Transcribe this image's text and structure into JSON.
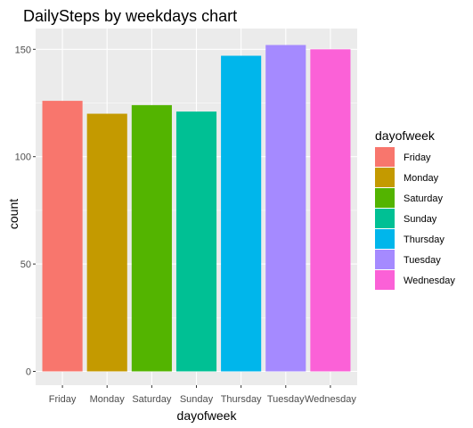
{
  "chart_data": {
    "type": "bar",
    "title": "DailySteps by weekdays chart",
    "xlabel": "dayofweek",
    "ylabel": "count",
    "categories": [
      "Friday",
      "Monday",
      "Saturday",
      "Sunday",
      "Thursday",
      "Tuesday",
      "Wednesday"
    ],
    "values": [
      126,
      120,
      124,
      121,
      147,
      152,
      150
    ],
    "colors": [
      "#F8766D",
      "#C49A00",
      "#53B400",
      "#00C094",
      "#00B6EB",
      "#A58AFF",
      "#FB61D7"
    ],
    "ylim": [
      0,
      160
    ],
    "yticks": [
      0,
      50,
      100,
      150
    ],
    "grid": true,
    "legend": {
      "title": "dayofweek",
      "position": "right",
      "entries": [
        "Friday",
        "Monday",
        "Saturday",
        "Sunday",
        "Thursday",
        "Tuesday",
        "Wednesday"
      ]
    },
    "panel_background": "#EBEBEB",
    "grid_color": "#FFFFFF"
  }
}
